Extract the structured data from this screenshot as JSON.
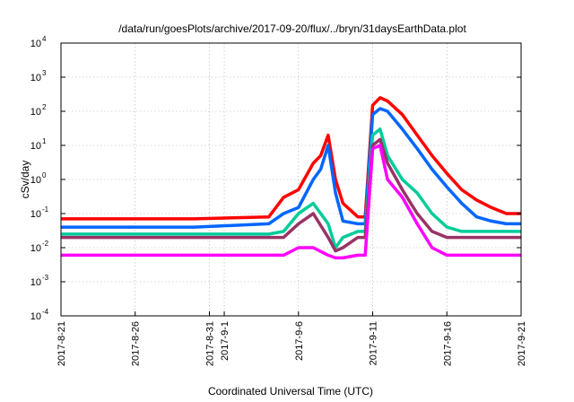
{
  "chart_data": {
    "type": "line",
    "title": "/data/run/goesPlots/archive/2017-09-20/flux/../bryn/31daysEarthData.plot",
    "xlabel": "Coordinated Universal Time (UTC)",
    "ylabel": "cSv/day",
    "xlim": [
      "2017-08-21",
      "2017-09-21"
    ],
    "ylim": [
      0.0001,
      10000
    ],
    "yscale": "log",
    "grid": true,
    "x_ticks": [
      "2017-8-21",
      "2017-8-26",
      "2017-8-31",
      "2017-9-1",
      "2017-9-6",
      "2017-9-11",
      "2017-9-16",
      "2017-9-21"
    ],
    "x_tick_dates": [
      "2017-08-21",
      "2017-08-26",
      "2017-08-31",
      "2017-09-01",
      "2017-09-06",
      "2017-09-11",
      "2017-09-16",
      "2017-09-21"
    ],
    "y_ticks": [
      {
        "base": "10",
        "exp": "-4",
        "value": 0.0001
      },
      {
        "base": "10",
        "exp": "-3",
        "value": 0.001
      },
      {
        "base": "10",
        "exp": "-2",
        "value": 0.01
      },
      {
        "base": "10",
        "exp": "-1",
        "value": 0.1
      },
      {
        "base": "10",
        "exp": "0",
        "value": 1
      },
      {
        "base": "10",
        "exp": "1",
        "value": 10
      },
      {
        "base": "10",
        "exp": "2",
        "value": 100
      },
      {
        "base": "10",
        "exp": "3",
        "value": 1000
      },
      {
        "base": "10",
        "exp": "4",
        "value": 10000
      }
    ],
    "series": [
      {
        "color": "#ff0000",
        "x": [
          "2017-08-21",
          "2017-08-23",
          "2017-08-24",
          "2017-08-25",
          "2017-08-30",
          "2017-09-04",
          "2017-09-05",
          "2017-09-06",
          "2017-09-07",
          "2017-09-07T12:00",
          "2017-09-08",
          "2017-09-08T12:00",
          "2017-09-09",
          "2017-09-10",
          "2017-09-10T12:00",
          "2017-09-11",
          "2017-09-11T12:00",
          "2017-09-12",
          "2017-09-13",
          "2017-09-14",
          "2017-09-15",
          "2017-09-16",
          "2017-09-17",
          "2017-09-18",
          "2017-09-19",
          "2017-09-20",
          "2017-09-21"
        ],
        "values": [
          0.07,
          0.07,
          0.07,
          0.07,
          0.07,
          0.08,
          0.3,
          0.5,
          3,
          5,
          20,
          1,
          0.2,
          0.08,
          0.08,
          150,
          250,
          200,
          80,
          20,
          5,
          1.5,
          0.5,
          0.25,
          0.15,
          0.1,
          0.1
        ]
      },
      {
        "color": "#0066ff",
        "x": [
          "2017-08-21",
          "2017-08-23",
          "2017-08-24",
          "2017-08-25",
          "2017-08-30",
          "2017-09-04",
          "2017-09-05",
          "2017-09-06",
          "2017-09-07",
          "2017-09-07T12:00",
          "2017-09-08",
          "2017-09-08T12:00",
          "2017-09-09",
          "2017-09-10",
          "2017-09-10T12:00",
          "2017-09-11",
          "2017-09-11T12:00",
          "2017-09-12",
          "2017-09-13",
          "2017-09-14",
          "2017-09-15",
          "2017-09-16",
          "2017-09-17",
          "2017-09-18",
          "2017-09-19",
          "2017-09-20",
          "2017-09-21"
        ],
        "values": [
          0.04,
          0.04,
          0.04,
          0.04,
          0.04,
          0.05,
          0.1,
          0.15,
          1,
          2,
          10,
          0.4,
          0.06,
          0.05,
          0.05,
          80,
          120,
          100,
          30,
          8,
          2,
          0.6,
          0.2,
          0.08,
          0.06,
          0.05,
          0.05
        ]
      },
      {
        "color": "#00cc99",
        "x": [
          "2017-08-21",
          "2017-08-30",
          "2017-09-04",
          "2017-09-05",
          "2017-09-06",
          "2017-09-07",
          "2017-09-08",
          "2017-09-08T12:00",
          "2017-09-09",
          "2017-09-10",
          "2017-09-10T12:00",
          "2017-09-11",
          "2017-09-11T12:00",
          "2017-09-12",
          "2017-09-13",
          "2017-09-14",
          "2017-09-15",
          "2017-09-16",
          "2017-09-17",
          "2017-09-18",
          "2017-09-19",
          "2017-09-20",
          "2017-09-21"
        ],
        "values": [
          0.025,
          0.025,
          0.025,
          0.03,
          0.1,
          0.2,
          0.05,
          0.01,
          0.02,
          0.03,
          0.03,
          20,
          30,
          5,
          1,
          0.4,
          0.1,
          0.04,
          0.03,
          0.03,
          0.03,
          0.03,
          0.03
        ]
      },
      {
        "color": "#993366",
        "x": [
          "2017-08-21",
          "2017-08-30",
          "2017-09-04",
          "2017-09-05",
          "2017-09-06",
          "2017-09-07",
          "2017-09-08",
          "2017-09-08T12:00",
          "2017-09-09",
          "2017-09-10",
          "2017-09-10T12:00",
          "2017-09-11",
          "2017-09-11T12:00",
          "2017-09-12",
          "2017-09-13",
          "2017-09-14",
          "2017-09-15",
          "2017-09-16",
          "2017-09-17",
          "2017-09-18",
          "2017-09-19",
          "2017-09-20",
          "2017-09-21"
        ],
        "values": [
          0.02,
          0.02,
          0.02,
          0.02,
          0.05,
          0.1,
          0.02,
          0.008,
          0.01,
          0.02,
          0.02,
          10,
          15,
          3,
          0.5,
          0.1,
          0.03,
          0.02,
          0.02,
          0.02,
          0.02,
          0.02,
          0.02
        ]
      },
      {
        "color": "#ff00ff",
        "x": [
          "2017-08-21",
          "2017-08-23",
          "2017-08-24",
          "2017-08-25",
          "2017-08-30",
          "2017-09-04",
          "2017-09-05",
          "2017-09-06",
          "2017-09-07",
          "2017-09-08",
          "2017-09-08T12:00",
          "2017-09-09",
          "2017-09-10",
          "2017-09-10T12:00",
          "2017-09-11",
          "2017-09-11T12:00",
          "2017-09-12",
          "2017-09-13",
          "2017-09-14",
          "2017-09-15",
          "2017-09-16",
          "2017-09-17",
          "2017-09-18",
          "2017-09-19",
          "2017-09-20",
          "2017-09-21"
        ],
        "values": [
          0.006,
          0.006,
          0.006,
          0.006,
          0.006,
          0.006,
          0.006,
          0.01,
          0.01,
          0.006,
          0.005,
          0.005,
          0.006,
          0.006,
          8,
          10,
          1,
          0.3,
          0.05,
          0.01,
          0.006,
          0.006,
          0.006,
          0.006,
          0.006,
          0.006
        ]
      }
    ]
  }
}
